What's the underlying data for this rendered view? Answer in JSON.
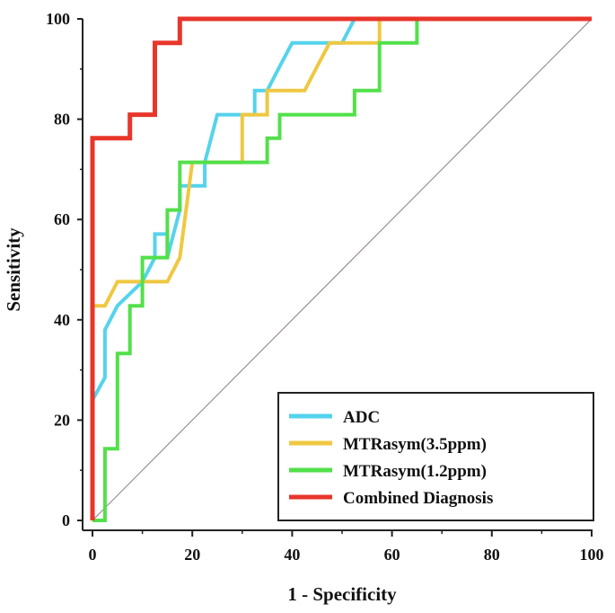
{
  "chart_data": {
    "type": "line",
    "title": "",
    "xlabel": "1 - Specificity",
    "ylabel": "Sensitivity",
    "xlim": [
      0,
      100
    ],
    "ylim": [
      0,
      100
    ],
    "xticks": [
      0,
      20,
      40,
      60,
      80,
      100
    ],
    "yticks": [
      0,
      20,
      40,
      60,
      80,
      100
    ],
    "grid": false,
    "legend_position": "bottom-right",
    "reference_line": {
      "name": "chance",
      "x": [
        0,
        100
      ],
      "y": [
        0,
        100
      ],
      "color": "#8a7a86"
    },
    "series": [
      {
        "name": "ADC",
        "color": "#55d3ec",
        "x": [
          0,
          0,
          2.5,
          2.5,
          5,
          10,
          12.5,
          12.5,
          15,
          15,
          17.5,
          17.5,
          20,
          20,
          22.5,
          22.5,
          25,
          30,
          32.5,
          32.5,
          35,
          37.5,
          40,
          45,
          50,
          52.5,
          55,
          100
        ],
        "y": [
          0,
          24,
          28.5,
          38,
          42.8,
          47.6,
          52.4,
          57.1,
          57.1,
          52.4,
          61.9,
          66.7,
          66.7,
          66.7,
          66.7,
          71.4,
          80.9,
          80.9,
          80.9,
          85.7,
          85.7,
          90.5,
          95.2,
          95.2,
          95.2,
          100,
          100,
          100
        ]
      },
      {
        "name": "MTRasym(3.5ppm)",
        "color": "#efc842",
        "x": [
          0,
          0,
          2.5,
          5,
          7.5,
          10,
          15,
          17.5,
          17.5,
          20,
          30,
          30,
          32.5,
          35,
          35,
          37.5,
          42.5,
          45,
          45,
          47.5,
          50,
          52.5,
          55,
          57.5,
          57.5,
          100
        ],
        "y": [
          0,
          42.8,
          42.8,
          47.6,
          47.6,
          47.6,
          47.6,
          52.4,
          52.4,
          71.4,
          71.4,
          80.9,
          80.9,
          80.9,
          85.7,
          85.7,
          85.7,
          90.5,
          90.5,
          95.2,
          95.2,
          95.2,
          95.2,
          95.2,
          100,
          100
        ]
      },
      {
        "name": "MTRasym(1.2ppm)",
        "color": "#52e04a",
        "x": [
          0,
          0,
          2.5,
          2.5,
          5,
          5,
          7.5,
          7.5,
          10,
          10,
          12.5,
          15,
          15,
          17.5,
          17.5,
          25,
          35,
          35,
          37.5,
          37.5,
          40,
          50,
          52.5,
          52.5,
          57.5,
          57.5,
          65,
          65,
          100
        ],
        "y": [
          0,
          0,
          0,
          14.3,
          14.3,
          33.3,
          33.3,
          42.8,
          42.8,
          52.4,
          52.4,
          52.4,
          61.9,
          61.9,
          71.4,
          71.4,
          71.4,
          76.2,
          76.2,
          80.9,
          80.9,
          80.9,
          80.9,
          85.7,
          85.7,
          95.2,
          95.2,
          100,
          100
        ]
      },
      {
        "name": "Combined Diagnosis",
        "color": "#e8362b",
        "x": [
          0,
          0,
          5,
          7.5,
          7.5,
          12.5,
          12.5,
          17.5,
          17.5,
          100
        ],
        "y": [
          0,
          76.2,
          76.2,
          76.2,
          80.9,
          80.9,
          95.2,
          95.2,
          100,
          100
        ]
      }
    ]
  }
}
